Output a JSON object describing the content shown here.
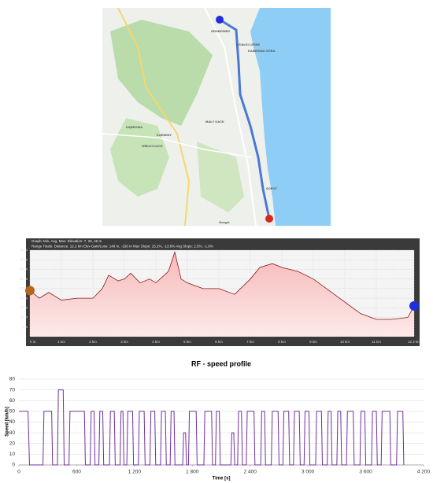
{
  "map": {
    "labels": [
      "GRABÓWEK",
      "DZIAŁKI LEŚNE",
      "KAMIENNA GÓRA",
      "DĄBROWA",
      "KARWINY",
      "WIELKI KACK",
      "MAŁY KACK",
      "SOPOT",
      "Google"
    ]
  },
  "chart_data": [
    {
      "type": "area",
      "annotations": [
        "Graph: Min, Avg, Max: Elevation: 7, 25, 45 m",
        "Range Totals: Distance: 12.2 km   Elev Gain/Loss: 149 m, -156 m   Max Slope: 15.2%, -13.8%   Avg Slope: 2.5%, -1.8%"
      ],
      "x": [
        0,
        0.3,
        0.6,
        1,
        1.5,
        2,
        2.3,
        2.5,
        2.8,
        3,
        3.2,
        3.5,
        3.8,
        4,
        4.4,
        4.6,
        4.8,
        5,
        5.5,
        6,
        6.5,
        7,
        7.3,
        7.7,
        8,
        8.5,
        9,
        9.5,
        10,
        10.5,
        11,
        11.5,
        12,
        12.2
      ],
      "values": [
        24,
        20,
        23,
        19,
        20,
        20,
        25,
        32,
        29,
        30,
        33,
        28,
        30,
        28,
        34,
        44,
        30,
        28,
        25,
        25,
        22,
        30,
        36,
        38,
        36,
        34,
        30,
        24,
        18,
        12,
        9,
        9,
        10,
        16
      ],
      "color": "#8b1a1a",
      "xlim": [
        0,
        12.2
      ],
      "ylim": [
        0,
        45
      ],
      "xticks": [
        {
          "value": 0,
          "label": "0 m"
        },
        {
          "value": 1,
          "label": "1 km"
        },
        {
          "value": 2,
          "label": "2 km"
        },
        {
          "value": 3,
          "label": "3 km"
        },
        {
          "value": 4,
          "label": "4 km"
        },
        {
          "value": 5,
          "label": "5 km"
        },
        {
          "value": 6,
          "label": "6 km"
        },
        {
          "value": 7,
          "label": "7 km"
        },
        {
          "value": 8,
          "label": "8 km"
        },
        {
          "value": 9,
          "label": "9 km"
        },
        {
          "value": 10,
          "label": "10 km"
        },
        {
          "value": 11,
          "label": "11 km"
        },
        {
          "value": 12.2,
          "label": "12.2 km"
        }
      ],
      "yticks": [
        {
          "value": 5,
          "label": "5 m"
        },
        {
          "value": 10,
          "label": "10 m"
        },
        {
          "value": 15,
          "label": "15 m"
        },
        {
          "value": 20,
          "label": "20 m"
        },
        {
          "value": 25,
          "label": "25 m"
        },
        {
          "value": 30,
          "label": "30 m"
        },
        {
          "value": 35,
          "label": "35 m"
        },
        {
          "value": 40,
          "label": "40 m"
        },
        {
          "value": 45,
          "label": "45 m"
        }
      ],
      "grid": true
    },
    {
      "type": "line",
      "title": "RF - speed profile",
      "x_label": "Time [s]",
      "y_label": "Speed [km/h]",
      "color": "#7030a0",
      "xlim": [
        0,
        4200
      ],
      "ylim": [
        0,
        80
      ],
      "xticks": [
        0,
        600,
        {
          "value": 1200,
          "label": "1 200"
        },
        {
          "value": 1800,
          "label": "1 800"
        },
        {
          "value": 2400,
          "label": "2 400"
        },
        {
          "value": 3000,
          "label": "3 000"
        },
        {
          "value": 3600,
          "label": "3 600"
        },
        {
          "value": 4200,
          "label": "4 200"
        }
      ],
      "yticks": [
        0,
        10,
        20,
        30,
        40,
        50,
        60,
        70,
        80
      ],
      "grid": true,
      "x": [
        0,
        95,
        110,
        250,
        260,
        340,
        350,
        400,
        410,
        460,
        470,
        520,
        530,
        680,
        690,
        740,
        750,
        780,
        790,
        830,
        840,
        870,
        880,
        940,
        950,
        990,
        1000,
        1050,
        1060,
        1080,
        1090,
        1120,
        1130,
        1180,
        1190,
        1240,
        1250,
        1300,
        1310,
        1360,
        1370,
        1410,
        1420,
        1470,
        1480,
        1520,
        1530,
        1570,
        1580,
        1610,
        1620,
        1700,
        1710,
        1730,
        1740,
        1760,
        1770,
        1840,
        1850,
        1920,
        1930,
        2000,
        2010,
        2040,
        2050,
        2080,
        2090,
        2200,
        2210,
        2230,
        2240,
        2270,
        2280,
        2310,
        2320,
        2360,
        2370,
        2440,
        2450,
        2510,
        2520,
        2550,
        2560,
        2620,
        2630,
        2690,
        2700,
        2740,
        2750,
        2800,
        2810,
        2850,
        2860,
        2910,
        2920,
        2960,
        2970,
        3010,
        3020,
        3080,
        3090,
        3140,
        3150,
        3200,
        3210,
        3240,
        3250,
        3300,
        3310,
        3340,
        3350,
        3400,
        3410,
        3470,
        3480,
        3540,
        3550,
        3590,
        3600,
        3660,
        3670,
        3710,
        3720,
        3760,
        3770,
        3850,
        3860,
        3920,
        3930,
        3985,
        3995
      ],
      "values": [
        50,
        50,
        0,
        0,
        50,
        50,
        0,
        0,
        70,
        70,
        0,
        0,
        50,
        50,
        0,
        0,
        50,
        50,
        0,
        0,
        50,
        50,
        0,
        0,
        50,
        50,
        0,
        0,
        50,
        50,
        0,
        0,
        50,
        50,
        0,
        0,
        50,
        50,
        0,
        0,
        50,
        50,
        0,
        0,
        50,
        50,
        0,
        0,
        50,
        50,
        0,
        0,
        30,
        30,
        0,
        0,
        50,
        50,
        0,
        0,
        50,
        50,
        0,
        0,
        50,
        50,
        0,
        0,
        30,
        30,
        0,
        0,
        50,
        50,
        0,
        0,
        50,
        50,
        0,
        0,
        50,
        50,
        0,
        0,
        50,
        50,
        0,
        0,
        50,
        50,
        0,
        0,
        50,
        50,
        0,
        0,
        50,
        50,
        0,
        0,
        50,
        50,
        0,
        0,
        50,
        50,
        0,
        0,
        50,
        50,
        0,
        0,
        50,
        50,
        0,
        0,
        50,
        50,
        0,
        0,
        50,
        50,
        0,
        0,
        50,
        50,
        0,
        0,
        50,
        50,
        0
      ]
    }
  ]
}
